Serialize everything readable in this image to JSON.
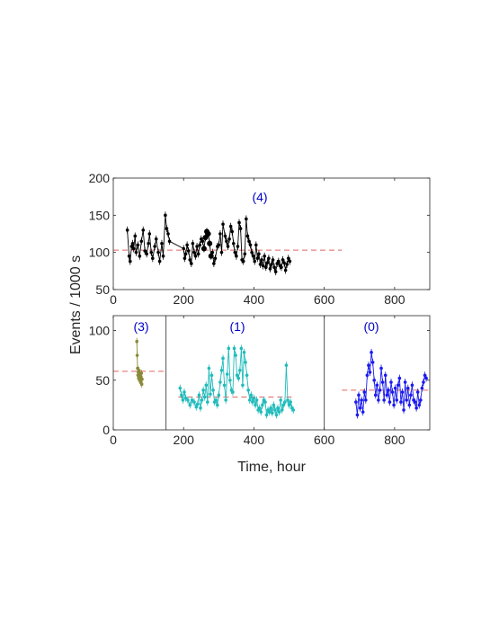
{
  "chart_data": {
    "type": "scatter",
    "xlabel": "Time, hour",
    "ylabel": "Events / 1000 s",
    "colors": {
      "reference_line": "#e06666",
      "panel_label": "#0000cc",
      "frame": "#262626"
    },
    "top_panel": {
      "xlim": [
        0,
        900
      ],
      "ylim": [
        50,
        200
      ],
      "xticks": [
        "0",
        "200",
        "400",
        "600",
        "800"
      ],
      "yticks": [
        "50",
        "100",
        "150",
        "200"
      ],
      "grid": false,
      "series": [
        {
          "label": "(4)",
          "color": "#000000",
          "reference_y": 103,
          "reference_x": [
            0,
            650
          ],
          "x": [
            40,
            45,
            48,
            52,
            55,
            58,
            62,
            65,
            70,
            75,
            80,
            85,
            90,
            95,
            100,
            103,
            108,
            112,
            118,
            122,
            128,
            132,
            138,
            142,
            148,
            152,
            156,
            160,
            200,
            203,
            206,
            210,
            214,
            218,
            222,
            226,
            230,
            234,
            238,
            242,
            246,
            250,
            254,
            258,
            262,
            266,
            270,
            274,
            278,
            282,
            286,
            290,
            296,
            300,
            304,
            308,
            312,
            318,
            322,
            326,
            330,
            334,
            338,
            342,
            346,
            350,
            354,
            358,
            362,
            366,
            370,
            374,
            378,
            382,
            386,
            390,
            394,
            398,
            402,
            406,
            410,
            414,
            418,
            422,
            426,
            430,
            434,
            438,
            442,
            446,
            450,
            454,
            458,
            462,
            466,
            470,
            474,
            478,
            482,
            486,
            490,
            494,
            498,
            502
          ],
          "y": [
            130,
            95,
            88,
            108,
            112,
            105,
            122,
            100,
            110,
            95,
            115,
            130,
            102,
            98,
            112,
            125,
            100,
            92,
            108,
            118,
            100,
            88,
            112,
            95,
            150,
            132,
            125,
            115,
            105,
            92,
            98,
            110,
            102,
            90,
            85,
            112,
            100,
            95,
            108,
            98,
            110,
            118,
            115,
            105,
            120,
            128,
            125,
            112,
            95,
            100,
            85,
            92,
            108,
            110,
            125,
            100,
            138,
            122,
            115,
            108,
            118,
            135,
            128,
            112,
            100,
            95,
            108,
            140,
            132,
            90,
            88,
            98,
            145,
            122,
            115,
            110,
            100,
            95,
            88,
            110,
            92,
            98,
            84,
            90,
            82,
            95,
            80,
            86,
            92,
            78,
            84,
            90,
            80,
            74,
            85,
            88,
            82,
            80,
            90,
            86,
            76,
            84,
            92,
            88
          ]
        }
      ]
    },
    "bottom_panels": [
      {
        "label": "(3)",
        "color": "#8a8a3a",
        "xlim": [
          0,
          150
        ],
        "ylim": [
          0,
          115
        ],
        "xticks": [
          "0"
        ],
        "yticks": [
          "0",
          "50",
          "100"
        ],
        "reference_y": 59,
        "reference_x": [
          0,
          150
        ],
        "x": [
          67,
          68,
          69,
          70,
          71,
          72,
          73,
          74,
          75,
          76,
          77,
          78,
          79,
          80,
          81,
          82
        ],
        "y": [
          89,
          75,
          62,
          55,
          58,
          52,
          60,
          57,
          50,
          56,
          54,
          48,
          53,
          57,
          46,
          51
        ]
      },
      {
        "label": "(1)",
        "color": "#22bbbb",
        "xlim": [
          150,
          600
        ],
        "ylim": [
          0,
          115
        ],
        "xticks": [
          "200",
          "400"
        ],
        "yticks": [],
        "reference_y": 33,
        "reference_x": [
          185,
          515
        ],
        "x": [
          190,
          194,
          198,
          202,
          206,
          212,
          218,
          224,
          230,
          236,
          240,
          244,
          248,
          252,
          256,
          260,
          264,
          268,
          272,
          276,
          280,
          284,
          288,
          292,
          296,
          300,
          304,
          308,
          312,
          316,
          320,
          324,
          328,
          332,
          336,
          340,
          344,
          348,
          352,
          356,
          360,
          364,
          368,
          372,
          376,
          380,
          384,
          388,
          392,
          396,
          400,
          404,
          408,
          412,
          416,
          420,
          424,
          428,
          432,
          436,
          440,
          444,
          448,
          452,
          456,
          460,
          464,
          468,
          472,
          476,
          480,
          484,
          488,
          492,
          496,
          500,
          504,
          508,
          512
        ],
        "y": [
          42,
          35,
          30,
          38,
          32,
          30,
          25,
          30,
          28,
          23,
          26,
          35,
          22,
          30,
          40,
          33,
          45,
          28,
          62,
          36,
          55,
          40,
          28,
          30,
          25,
          35,
          48,
          60,
          72,
          45,
          30,
          56,
          82,
          50,
          40,
          38,
          82,
          75,
          55,
          52,
          60,
          82,
          45,
          78,
          68,
          55,
          40,
          30,
          35,
          28,
          32,
          25,
          30,
          20,
          22,
          18,
          25,
          30,
          28,
          15,
          20,
          18,
          22,
          17,
          25,
          20,
          15,
          22,
          18,
          30,
          20,
          25,
          28,
          65,
          30,
          25,
          28,
          22,
          20
        ]
      },
      {
        "label": "(0)",
        "color": "#1a1aee",
        "xlim": [
          600,
          900
        ],
        "ylim": [
          0,
          115
        ],
        "xticks": [
          "600",
          "800"
        ],
        "yticks": [],
        "reference_y": 40,
        "reference_x": [
          650,
          900
        ],
        "x": [
          690,
          694,
          698,
          702,
          706,
          710,
          714,
          718,
          722,
          726,
          730,
          734,
          738,
          742,
          746,
          750,
          754,
          758,
          762,
          766,
          770,
          774,
          778,
          782,
          786,
          790,
          794,
          798,
          802,
          806,
          810,
          814,
          818,
          822,
          826,
          830,
          834,
          838,
          842,
          846,
          850,
          854,
          858,
          862,
          866,
          870,
          874,
          878,
          882,
          886,
          890
        ],
        "y": [
          28,
          15,
          35,
          22,
          30,
          18,
          38,
          30,
          55,
          65,
          58,
          78,
          68,
          50,
          35,
          45,
          30,
          40,
          62,
          48,
          30,
          55,
          35,
          40,
          28,
          48,
          38,
          25,
          42,
          30,
          45,
          52,
          28,
          38,
          20,
          48,
          30,
          42,
          25,
          35,
          45,
          30,
          28,
          22,
          38,
          25,
          30,
          42,
          48,
          55,
          52
        ]
      }
    ]
  }
}
